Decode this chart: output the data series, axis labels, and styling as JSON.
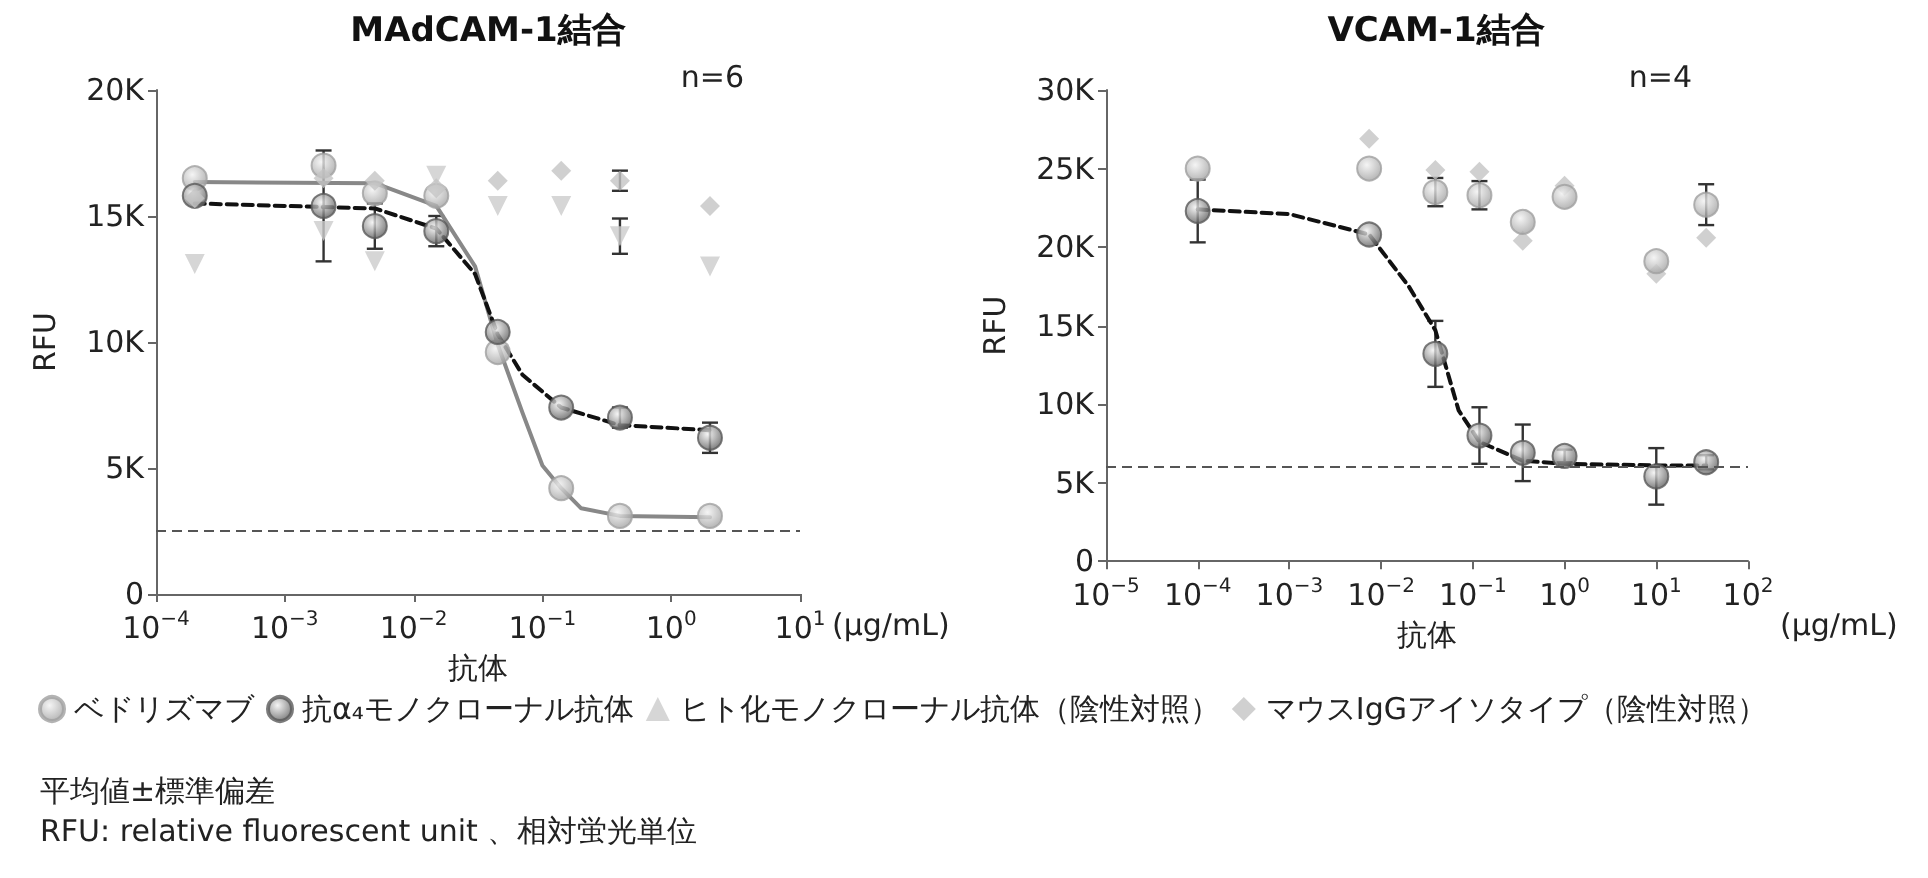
{
  "chart_data": [
    {
      "type": "scatter",
      "title": "MAdCAM-1結合",
      "xlabel": "抗体",
      "ylabel": "RFU",
      "log": "x",
      "grid": false,
      "legend": "bottom",
      "xlim": [
        0.0001,
        10
      ],
      "xticks": [
        {
          "value": 0.0001,
          "label": "10$^{−4}$"
        },
        {
          "value": 0.001,
          "label": "10$^{−3}$"
        },
        {
          "value": 0.01,
          "label": "10$^{−2}$"
        },
        {
          "value": 0.1,
          "label": "10$^{−1}$"
        },
        {
          "value": 1,
          "label": "10$^{0}$"
        },
        {
          "value": 10,
          "label": "10$^{1}$"
        }
      ],
      "ylim": [
        0,
        20000
      ],
      "yticks": [
        0,
        {
          "value": 5000,
          "label": "5K"
        },
        {
          "value": 10000,
          "label": "10K"
        },
        {
          "value": 15000,
          "label": "15K"
        },
        {
          "value": 20000,
          "label": "20K"
        }
      ],
      "annotations": [
        "n=6",
        "(μg/mL)",
        "平均値±標準偏差",
        "RFU: relative fluorescent unit 、相対蛍光単位"
      ],
      "ref_lines": [
        {
          "axis": "y",
          "value": 2500,
          "color": "#555555",
          "line_style": "dashed"
        }
      ],
      "series": [
        {
          "type": "line",
          "color": "#888888",
          "line_style": "solid",
          "marker": "none",
          "x": [
            0.0002,
            0.005,
            0.015,
            0.03,
            0.045,
            0.07,
            0.1,
            0.14,
            0.2,
            0.4,
            2
          ],
          "values": [
            16350,
            16300,
            15400,
            13000,
            9900,
            7200,
            5100,
            4200,
            3400,
            3100,
            3050
          ]
        },
        {
          "type": "line",
          "color": "#111111",
          "line_style": "dashed",
          "marker": "none",
          "x": [
            0.0002,
            0.005,
            0.015,
            0.03,
            0.045,
            0.07,
            0.14,
            0.4,
            2
          ],
          "values": [
            15500,
            15300,
            14500,
            12700,
            10300,
            8700,
            7400,
            6700,
            6500
          ]
        },
        {
          "name": "ベドリズマブ",
          "color": "#a0a0a0",
          "marker": "circle",
          "x": [
            0.0002,
            0.002,
            0.005,
            0.015,
            0.045,
            0.14,
            0.4,
            2
          ],
          "values": [
            16500,
            17000,
            15900,
            15800,
            9600,
            4200,
            3100,
            3100
          ]
        },
        {
          "name": "抗α₄モノクローナル抗体",
          "color": "#5a5a5a",
          "marker": "circle",
          "x": [
            0.0002,
            0.002,
            0.005,
            0.015,
            0.045,
            0.14,
            0.4,
            2
          ],
          "values": [
            15800,
            15400,
            14600,
            14400,
            10400,
            7400,
            7000,
            6200
          ],
          "errors": [
            null,
            2200,
            900,
            600,
            null,
            null,
            400,
            600
          ]
        },
        {
          "name": "ヒト化モノクローナル抗体（陰性対照）",
          "color": "#cccccc",
          "marker": "triangle",
          "x": [
            0.0002,
            0.002,
            0.005,
            0.015,
            0.045,
            0.14,
            0.4,
            2
          ],
          "values": [
            13100,
            14400,
            13200,
            16600,
            15400,
            15400,
            14200,
            13000
          ],
          "errors": [
            null,
            null,
            null,
            null,
            null,
            null,
            700,
            null
          ]
        },
        {
          "name": "マウスIgGアイソタイプ（陰性対照）",
          "color": "#c4c4c4",
          "marker": "diamond",
          "x": [
            0.0002,
            0.002,
            0.005,
            0.015,
            0.045,
            0.14,
            0.4,
            2
          ],
          "values": [
            15700,
            16500,
            16400,
            16100,
            16400,
            16800,
            16400,
            15400
          ],
          "errors": [
            null,
            null,
            null,
            null,
            null,
            null,
            400,
            null
          ]
        }
      ]
    },
    {
      "type": "scatter",
      "title": "VCAM-1結合",
      "xlabel": "抗体",
      "ylabel": "RFU",
      "log": "x",
      "grid": false,
      "legend": false,
      "xlim": [
        1e-05,
        100
      ],
      "xticks": [
        {
          "value": 1e-05,
          "label": "10$^{−5}$"
        },
        {
          "value": 0.0001,
          "label": "10$^{−4}$"
        },
        {
          "value": 0.001,
          "label": "10$^{−3}$"
        },
        {
          "value": 0.01,
          "label": "10$^{−2}$"
        },
        {
          "value": 0.1,
          "label": "10$^{−1}$"
        },
        {
          "value": 1,
          "label": "10$^{0}$"
        },
        {
          "value": 10,
          "label": "10$^{1}$"
        },
        {
          "value": 100,
          "label": "10$^{2}$"
        }
      ],
      "ylim": [
        0,
        30000
      ],
      "yticks": [
        0,
        {
          "value": 5000,
          "label": "5K"
        },
        {
          "value": 10000,
          "label": "10K"
        },
        {
          "value": 15000,
          "label": "15K"
        },
        {
          "value": 20000,
          "label": "20K"
        },
        {
          "value": 25000,
          "label": "25K"
        },
        {
          "value": 30000,
          "label": "30K"
        }
      ],
      "annotations": [
        "n=4",
        "(μg/mL)"
      ],
      "ref_lines": [
        {
          "axis": "y",
          "value": 6000,
          "color": "#555555",
          "line_style": "dashed"
        }
      ],
      "series": [
        {
          "type": "line",
          "color": "#111111",
          "line_style": "dashed",
          "marker": "none",
          "x": [
            0.0001,
            0.001,
            0.0074,
            0.02,
            0.039,
            0.07,
            0.118,
            0.35,
            1,
            10,
            35
          ],
          "values": [
            22400,
            22100,
            20800,
            17500,
            14700,
            9600,
            7600,
            6400,
            6200,
            6100,
            6100
          ]
        },
        {
          "color": "#c4c4c4",
          "marker": "diamond",
          "x": [
            0.0074,
            0.039,
            0.118,
            0.35,
            1,
            10,
            35
          ],
          "values": [
            26900,
            24900,
            24800,
            20400,
            23900,
            18300,
            20600
          ]
        },
        {
          "color": "#a0a0a0",
          "marker": "circle",
          "x": [
            0.0001,
            0.0074,
            0.039,
            0.118,
            0.35,
            1,
            10,
            35
          ],
          "values": [
            25000,
            25000,
            23500,
            23300,
            21600,
            23200,
            19100,
            22700
          ],
          "errors": [
            null,
            null,
            900,
            900,
            null,
            null,
            null,
            1300
          ]
        },
        {
          "color": "#5a5a5a",
          "marker": "circle",
          "x": [
            0.0001,
            0.0074,
            0.039,
            0.118,
            0.35,
            1,
            10,
            35
          ],
          "values": [
            22300,
            20800,
            13200,
            8000,
            6900,
            6700,
            5400,
            6300
          ],
          "errors": [
            2000,
            null,
            2100,
            1800,
            1800,
            400,
            1800,
            450
          ]
        }
      ]
    }
  ]
}
